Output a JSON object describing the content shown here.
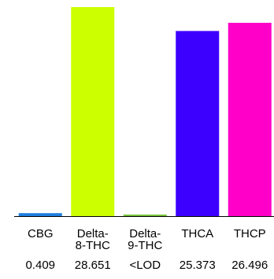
{
  "chart_data": {
    "type": "bar",
    "title": "",
    "xlabel": "",
    "ylabel": "",
    "categories": [
      [
        "CBG"
      ],
      [
        "Delta-",
        "8-THC"
      ],
      [
        "Delta-",
        "9-THC"
      ],
      [
        "THCA"
      ],
      [
        "THCP"
      ]
    ],
    "values": [
      0.409,
      28.651,
      0.15,
      25.373,
      26.496
    ],
    "value_labels": [
      "0.409",
      "28.651",
      "<LOD",
      "25.373",
      "26.496"
    ],
    "colors": [
      "#1f7fe0",
      "#ccff00",
      "#77c43a",
      "#3c00ff",
      "#ff00c8"
    ],
    "ylim": [
      0,
      28.651
    ],
    "grid": false,
    "legend": false
  }
}
